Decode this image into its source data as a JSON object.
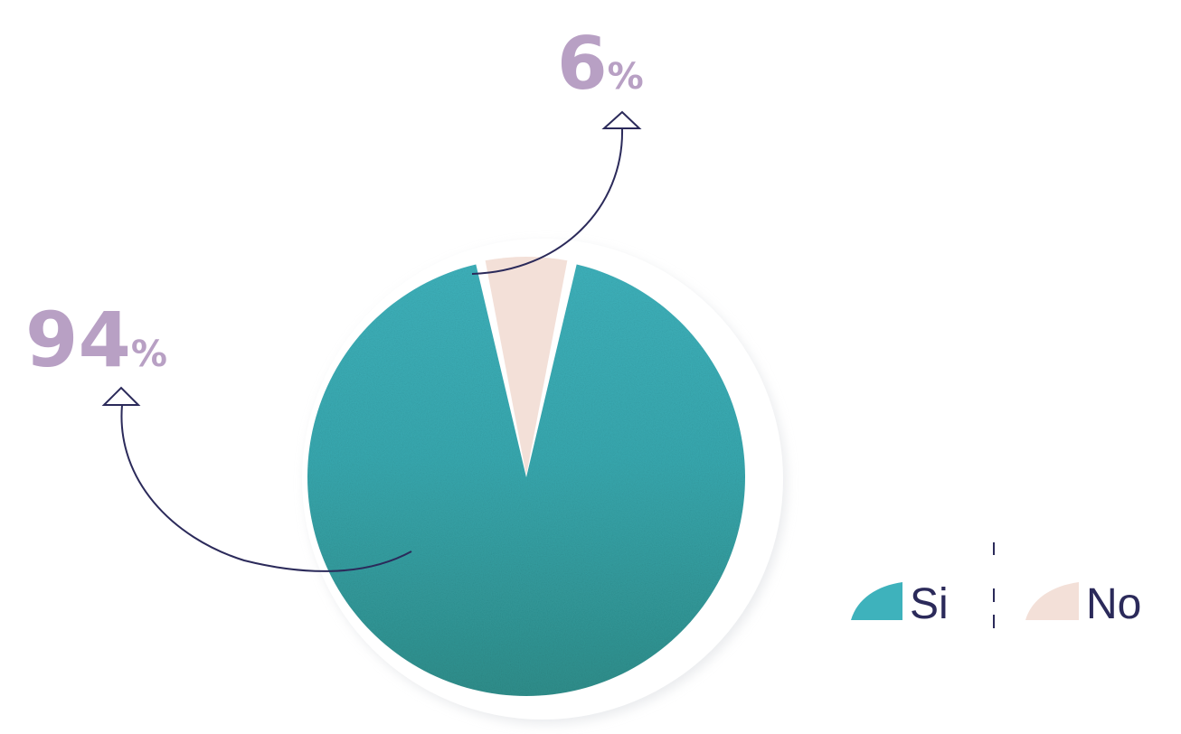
{
  "chart_data": {
    "type": "pie",
    "categories": [
      "Si",
      "No"
    ],
    "values": [
      94,
      6
    ],
    "unit": "%",
    "labels": [
      {
        "category": "Si",
        "number": "94",
        "sign": "%"
      },
      {
        "category": "No",
        "number": "6",
        "sign": "%"
      }
    ],
    "legend": {
      "placement": "bottom-right",
      "items": [
        {
          "label": "Si",
          "color": "#3eb2bc"
        },
        {
          "label": "No",
          "color": "#f3e0d8"
        }
      ]
    }
  },
  "colors": {
    "si": "#3eb2bc",
    "si_dark": "#2f8f8c",
    "no": "#f3e0d8",
    "label": "#b8a0c4",
    "arrow": "#2b2a5a",
    "ring": "#e4e6e9",
    "legend_text": "#2b2a5a"
  }
}
